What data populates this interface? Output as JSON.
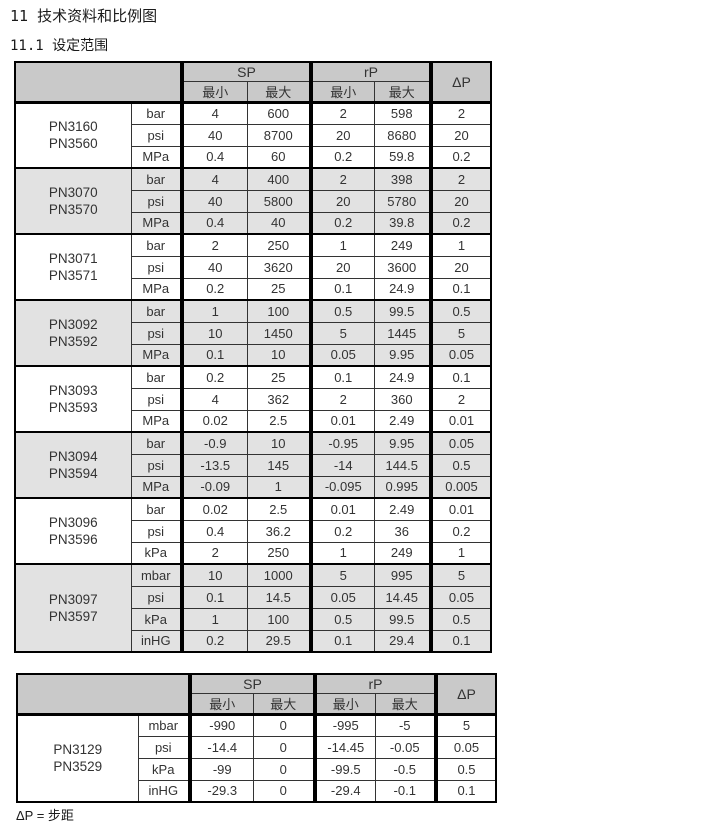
{
  "page": {
    "title": "11 技术资料和比例图",
    "subtitle": "11.1 设定范围",
    "footnote": "ΔP = 步距"
  },
  "header_labels": {
    "sp": "SP",
    "rp": "rP",
    "dp": "ΔP",
    "min": "最小",
    "max": "最大"
  },
  "colors": {
    "header_bg": "#c9c9c9",
    "shaded_row_bg": "#e2e2e2",
    "border_thick": "#000000",
    "border_thin": "#333333",
    "text": "#333333"
  },
  "tables": [
    {
      "name": "setting-range-table-1",
      "groups": [
        {
          "models": [
            "PN3160",
            "PN3560"
          ],
          "shaded": false,
          "rows": [
            {
              "unit": "bar",
              "sp_min": "4",
              "sp_max": "600",
              "rp_min": "2",
              "rp_max": "598",
              "dp": "2"
            },
            {
              "unit": "psi",
              "sp_min": "40",
              "sp_max": "8700",
              "rp_min": "20",
              "rp_max": "8680",
              "dp": "20"
            },
            {
              "unit": "MPa",
              "sp_min": "0.4",
              "sp_max": "60",
              "rp_min": "0.2",
              "rp_max": "59.8",
              "dp": "0.2"
            }
          ]
        },
        {
          "models": [
            "PN3070",
            "PN3570"
          ],
          "shaded": true,
          "rows": [
            {
              "unit": "bar",
              "sp_min": "4",
              "sp_max": "400",
              "rp_min": "2",
              "rp_max": "398",
              "dp": "2"
            },
            {
              "unit": "psi",
              "sp_min": "40",
              "sp_max": "5800",
              "rp_min": "20",
              "rp_max": "5780",
              "dp": "20"
            },
            {
              "unit": "MPa",
              "sp_min": "0.4",
              "sp_max": "40",
              "rp_min": "0.2",
              "rp_max": "39.8",
              "dp": "0.2"
            }
          ]
        },
        {
          "models": [
            "PN3071",
            "PN3571"
          ],
          "shaded": false,
          "rows": [
            {
              "unit": "bar",
              "sp_min": "2",
              "sp_max": "250",
              "rp_min": "1",
              "rp_max": "249",
              "dp": "1"
            },
            {
              "unit": "psi",
              "sp_min": "40",
              "sp_max": "3620",
              "rp_min": "20",
              "rp_max": "3600",
              "dp": "20"
            },
            {
              "unit": "MPa",
              "sp_min": "0.2",
              "sp_max": "25",
              "rp_min": "0.1",
              "rp_max": "24.9",
              "dp": "0.1"
            }
          ]
        },
        {
          "models": [
            "PN3092",
            "PN3592"
          ],
          "shaded": true,
          "rows": [
            {
              "unit": "bar",
              "sp_min": "1",
              "sp_max": "100",
              "rp_min": "0.5",
              "rp_max": "99.5",
              "dp": "0.5"
            },
            {
              "unit": "psi",
              "sp_min": "10",
              "sp_max": "1450",
              "rp_min": "5",
              "rp_max": "1445",
              "dp": "5"
            },
            {
              "unit": "MPa",
              "sp_min": "0.1",
              "sp_max": "10",
              "rp_min": "0.05",
              "rp_max": "9.95",
              "dp": "0.05"
            }
          ]
        },
        {
          "models": [
            "PN3093",
            "PN3593"
          ],
          "shaded": false,
          "rows": [
            {
              "unit": "bar",
              "sp_min": "0.2",
              "sp_max": "25",
              "rp_min": "0.1",
              "rp_max": "24.9",
              "dp": "0.1"
            },
            {
              "unit": "psi",
              "sp_min": "4",
              "sp_max": "362",
              "rp_min": "2",
              "rp_max": "360",
              "dp": "2"
            },
            {
              "unit": "MPa",
              "sp_min": "0.02",
              "sp_max": "2.5",
              "rp_min": "0.01",
              "rp_max": "2.49",
              "dp": "0.01"
            }
          ]
        },
        {
          "models": [
            "PN3094",
            "PN3594"
          ],
          "shaded": true,
          "rows": [
            {
              "unit": "bar",
              "sp_min": "-0.9",
              "sp_max": "10",
              "rp_min": "-0.95",
              "rp_max": "9.95",
              "dp": "0.05"
            },
            {
              "unit": "psi",
              "sp_min": "-13.5",
              "sp_max": "145",
              "rp_min": "-14",
              "rp_max": "144.5",
              "dp": "0.5"
            },
            {
              "unit": "MPa",
              "sp_min": "-0.09",
              "sp_max": "1",
              "rp_min": "-0.095",
              "rp_max": "0.995",
              "dp": "0.005"
            }
          ]
        },
        {
          "models": [
            "PN3096",
            "PN3596"
          ],
          "shaded": false,
          "rows": [
            {
              "unit": "bar",
              "sp_min": "0.02",
              "sp_max": "2.5",
              "rp_min": "0.01",
              "rp_max": "2.49",
              "dp": "0.01"
            },
            {
              "unit": "psi",
              "sp_min": "0.4",
              "sp_max": "36.2",
              "rp_min": "0.2",
              "rp_max": "36",
              "dp": "0.2"
            },
            {
              "unit": "kPa",
              "sp_min": "2",
              "sp_max": "250",
              "rp_min": "1",
              "rp_max": "249",
              "dp": "1"
            }
          ]
        },
        {
          "models": [
            "PN3097",
            "PN3597"
          ],
          "shaded": true,
          "rows": [
            {
              "unit": "mbar",
              "sp_min": "10",
              "sp_max": "1000",
              "rp_min": "5",
              "rp_max": "995",
              "dp": "5"
            },
            {
              "unit": "psi",
              "sp_min": "0.1",
              "sp_max": "14.5",
              "rp_min": "0.05",
              "rp_max": "14.45",
              "dp": "0.05"
            },
            {
              "unit": "kPa",
              "sp_min": "1",
              "sp_max": "100",
              "rp_min": "0.5",
              "rp_max": "99.5",
              "dp": "0.5"
            },
            {
              "unit": "inHG",
              "sp_min": "0.2",
              "sp_max": "29.5",
              "rp_min": "0.1",
              "rp_max": "29.4",
              "dp": "0.1"
            }
          ]
        }
      ]
    },
    {
      "name": "setting-range-table-2",
      "groups": [
        {
          "models": [
            "PN3129",
            "PN3529"
          ],
          "shaded": false,
          "rows": [
            {
              "unit": "mbar",
              "sp_min": "-990",
              "sp_max": "0",
              "rp_min": "-995",
              "rp_max": "-5",
              "dp": "5"
            },
            {
              "unit": "psi",
              "sp_min": "-14.4",
              "sp_max": "0",
              "rp_min": "-14.45",
              "rp_max": "-0.05",
              "dp": "0.05"
            },
            {
              "unit": "kPa",
              "sp_min": "-99",
              "sp_max": "0",
              "rp_min": "-99.5",
              "rp_max": "-0.5",
              "dp": "0.5"
            },
            {
              "unit": "inHG",
              "sp_min": "-29.3",
              "sp_max": "0",
              "rp_min": "-29.4",
              "rp_max": "-0.1",
              "dp": "0.1"
            }
          ]
        }
      ]
    }
  ]
}
